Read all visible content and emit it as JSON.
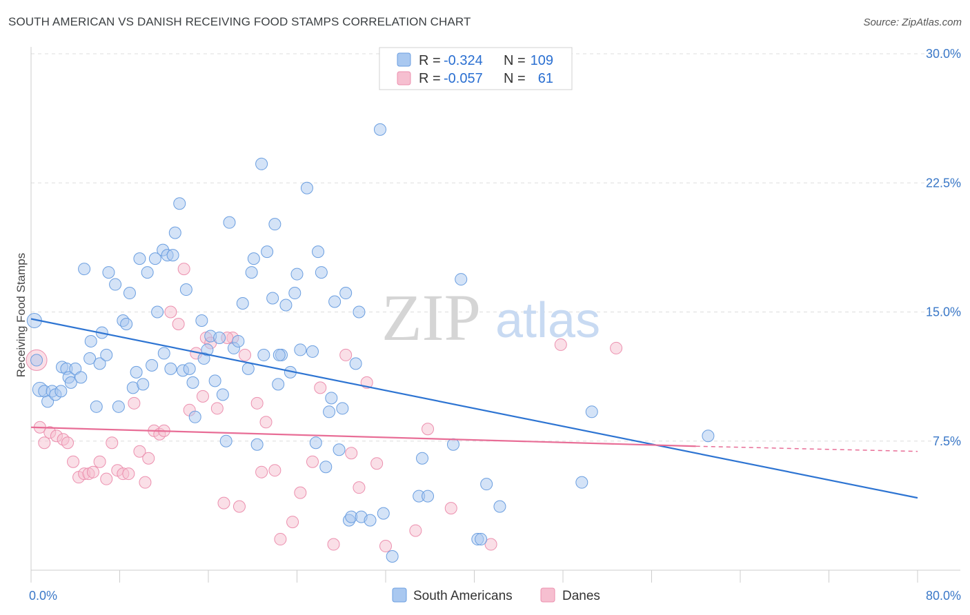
{
  "title": "SOUTH AMERICAN VS DANISH RECEIVING FOOD STAMPS CORRELATION CHART",
  "source": "Source: ZipAtlas.com",
  "watermark": {
    "zip": "ZIP",
    "atlas": "atlas"
  },
  "colors": {
    "blue_fill": "#a9c8f0",
    "blue_stroke": "#6a9ee0",
    "blue_line": "#2d74d2",
    "pink_fill": "#f6bfd0",
    "pink_stroke": "#ec8fae",
    "pink_line": "#e86d96",
    "grid": "#dddddd",
    "axis_text": "#3a78c8"
  },
  "legend": {
    "rows": [
      {
        "r_label": "R =",
        "r_value": "-0.324",
        "n_label": "N =",
        "n_value": "109"
      },
      {
        "r_label": "R =",
        "r_value": "-0.057",
        "n_label": "N =",
        "n_value": "61"
      }
    ]
  },
  "chart_data": {
    "type": "scatter",
    "title": "SOUTH AMERICAN VS DANISH RECEIVING FOOD STAMPS CORRELATION CHART",
    "xlabel": "",
    "ylabel": "Receiving Food Stamps",
    "xlim": [
      0,
      80
    ],
    "ylim": [
      0,
      30
    ],
    "x_tick_labels": [
      "0.0%",
      "80.0%"
    ],
    "y_ticks": [
      7.5,
      15.0,
      22.5,
      30.0
    ],
    "y_tick_labels": [
      "7.5%",
      "15.0%",
      "22.5%",
      "30.0%"
    ],
    "grid": "horizontal dashed",
    "legend_position": "top-center",
    "series": [
      {
        "name": "South Americans",
        "color": "#a9c8f0",
        "trend": {
          "x": [
            0,
            80
          ],
          "y": [
            14.6,
            4.2
          ]
        },
        "points": [
          [
            0.3,
            14.5
          ],
          [
            0.5,
            12.2
          ],
          [
            0.8,
            10.5
          ],
          [
            1.2,
            10.4
          ],
          [
            1.5,
            9.8
          ],
          [
            1.9,
            10.4
          ],
          [
            2.2,
            10.2
          ],
          [
            2.7,
            10.4
          ],
          [
            2.8,
            11.8
          ],
          [
            3.2,
            11.7
          ],
          [
            3.4,
            11.2
          ],
          [
            3.6,
            10.9
          ],
          [
            4.0,
            11.7
          ],
          [
            4.5,
            11.2
          ],
          [
            4.8,
            17.5
          ],
          [
            5.3,
            12.3
          ],
          [
            5.4,
            13.3
          ],
          [
            5.9,
            9.5
          ],
          [
            6.2,
            12.0
          ],
          [
            6.4,
            13.8
          ],
          [
            6.8,
            12.5
          ],
          [
            7.0,
            17.3
          ],
          [
            7.6,
            16.6
          ],
          [
            7.9,
            9.5
          ],
          [
            8.3,
            14.5
          ],
          [
            8.6,
            14.3
          ],
          [
            8.9,
            16.1
          ],
          [
            9.2,
            10.6
          ],
          [
            9.5,
            11.5
          ],
          [
            9.8,
            18.1
          ],
          [
            10.1,
            10.8
          ],
          [
            10.5,
            17.3
          ],
          [
            10.9,
            11.9
          ],
          [
            11.2,
            18.1
          ],
          [
            11.4,
            15.0
          ],
          [
            11.9,
            18.6
          ],
          [
            12.0,
            12.6
          ],
          [
            12.3,
            18.3
          ],
          [
            12.6,
            11.7
          ],
          [
            13.0,
            19.6
          ],
          [
            13.4,
            21.3
          ],
          [
            13.7,
            11.6
          ],
          [
            14.0,
            16.3
          ],
          [
            14.3,
            11.7
          ],
          [
            14.6,
            10.9
          ],
          [
            14.8,
            8.9
          ],
          [
            15.4,
            14.5
          ],
          [
            15.6,
            12.3
          ],
          [
            15.9,
            12.8
          ],
          [
            16.2,
            13.6
          ],
          [
            16.6,
            11.0
          ],
          [
            17.0,
            13.5
          ],
          [
            17.3,
            10.2
          ],
          [
            17.6,
            7.5
          ],
          [
            17.9,
            20.2
          ],
          [
            18.3,
            12.9
          ],
          [
            18.7,
            13.3
          ],
          [
            19.1,
            15.5
          ],
          [
            19.6,
            11.7
          ],
          [
            19.9,
            17.3
          ],
          [
            20.1,
            18.1
          ],
          [
            20.4,
            7.3
          ],
          [
            20.8,
            23.6
          ],
          [
            21.0,
            12.5
          ],
          [
            21.3,
            18.5
          ],
          [
            21.8,
            15.8
          ],
          [
            22.0,
            20.1
          ],
          [
            22.3,
            10.8
          ],
          [
            22.6,
            12.5
          ],
          [
            23.0,
            15.4
          ],
          [
            23.4,
            11.5
          ],
          [
            23.8,
            16.1
          ],
          [
            24.0,
            17.2
          ],
          [
            24.3,
            12.8
          ],
          [
            24.9,
            22.2
          ],
          [
            25.4,
            12.7
          ],
          [
            25.7,
            7.4
          ],
          [
            25.9,
            18.5
          ],
          [
            26.2,
            17.3
          ],
          [
            26.6,
            6.0
          ],
          [
            26.9,
            9.2
          ],
          [
            27.1,
            10.0
          ],
          [
            27.4,
            15.6
          ],
          [
            27.8,
            7.0
          ],
          [
            28.1,
            9.4
          ],
          [
            28.4,
            16.1
          ],
          [
            28.7,
            2.9
          ],
          [
            28.9,
            3.1
          ],
          [
            29.3,
            12.0
          ],
          [
            29.6,
            15.0
          ],
          [
            29.8,
            3.1
          ],
          [
            30.6,
            2.9
          ],
          [
            31.5,
            25.6
          ],
          [
            31.8,
            3.3
          ],
          [
            32.6,
            0.8
          ],
          [
            35.0,
            4.3
          ],
          [
            35.3,
            6.5
          ],
          [
            38.1,
            7.3
          ],
          [
            38.8,
            16.9
          ],
          [
            40.3,
            1.8
          ],
          [
            40.6,
            1.8
          ],
          [
            41.1,
            5.0
          ],
          [
            42.3,
            3.7
          ],
          [
            49.7,
            5.1
          ],
          [
            50.6,
            9.2
          ],
          [
            61.1,
            7.8
          ],
          [
            35.8,
            4.3
          ],
          [
            12.8,
            18.3
          ],
          [
            22.4,
            12.5
          ]
        ]
      },
      {
        "name": "Danes",
        "color": "#f6bfd0",
        "trend": {
          "x": [
            0,
            60
          ],
          "y": [
            8.3,
            7.2
          ]
        },
        "trend_dashed": {
          "x": [
            60,
            80
          ],
          "y": [
            7.2,
            6.9
          ]
        },
        "points": [
          [
            0.5,
            12.2
          ],
          [
            0.8,
            8.3
          ],
          [
            1.2,
            7.4
          ],
          [
            1.7,
            8.0
          ],
          [
            2.3,
            7.8
          ],
          [
            2.9,
            7.6
          ],
          [
            3.3,
            7.4
          ],
          [
            3.8,
            6.3
          ],
          [
            4.3,
            5.4
          ],
          [
            4.8,
            5.6
          ],
          [
            5.2,
            5.6
          ],
          [
            5.6,
            5.7
          ],
          [
            6.2,
            6.3
          ],
          [
            6.8,
            5.3
          ],
          [
            7.3,
            7.4
          ],
          [
            7.8,
            5.8
          ],
          [
            8.3,
            5.6
          ],
          [
            8.8,
            5.6
          ],
          [
            9.3,
            9.7
          ],
          [
            9.8,
            6.9
          ],
          [
            10.3,
            5.1
          ],
          [
            10.6,
            6.5
          ],
          [
            11.1,
            8.1
          ],
          [
            11.6,
            7.9
          ],
          [
            12.0,
            8.1
          ],
          [
            12.6,
            15.0
          ],
          [
            13.3,
            14.3
          ],
          [
            13.8,
            17.5
          ],
          [
            14.3,
            9.3
          ],
          [
            14.9,
            12.6
          ],
          [
            15.5,
            10.1
          ],
          [
            15.8,
            13.5
          ],
          [
            16.2,
            13.2
          ],
          [
            16.8,
            9.4
          ],
          [
            17.4,
            3.9
          ],
          [
            18.2,
            13.5
          ],
          [
            18.8,
            3.7
          ],
          [
            19.3,
            12.5
          ],
          [
            20.4,
            9.7
          ],
          [
            20.8,
            5.7
          ],
          [
            21.2,
            8.6
          ],
          [
            22.0,
            5.8
          ],
          [
            22.5,
            1.8
          ],
          [
            23.6,
            2.8
          ],
          [
            24.3,
            4.5
          ],
          [
            25.4,
            6.3
          ],
          [
            26.1,
            10.6
          ],
          [
            27.3,
            1.5
          ],
          [
            28.4,
            12.5
          ],
          [
            28.9,
            6.8
          ],
          [
            29.6,
            4.8
          ],
          [
            30.3,
            10.9
          ],
          [
            31.2,
            6.2
          ],
          [
            32.0,
            1.4
          ],
          [
            34.7,
            2.3
          ],
          [
            35.8,
            8.2
          ],
          [
            37.9,
            3.6
          ],
          [
            41.5,
            1.5
          ],
          [
            47.8,
            13.1
          ],
          [
            52.8,
            12.9
          ],
          [
            17.7,
            13.5
          ]
        ]
      }
    ]
  },
  "bottom_legend": [
    "South Americans",
    "Danes"
  ]
}
